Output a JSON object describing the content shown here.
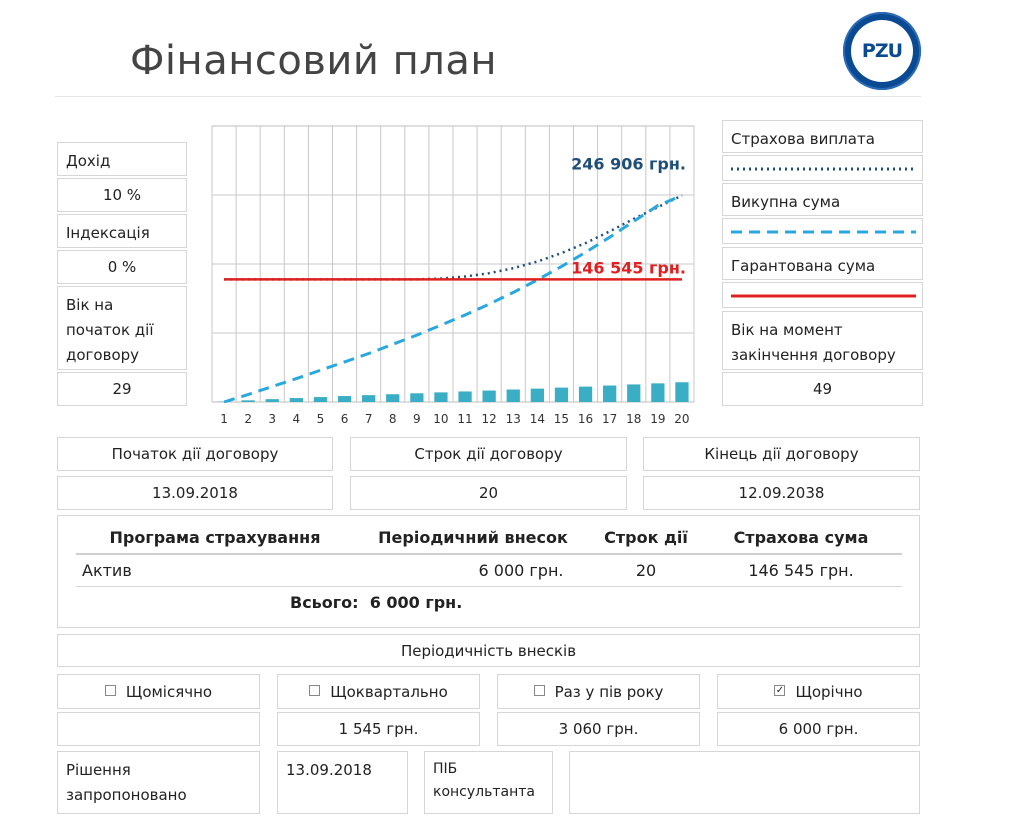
{
  "header": {
    "title": "Фінансовий план",
    "logo_text": "PZU"
  },
  "left": {
    "income_label": "Дохід",
    "income_value": "10 %",
    "indexation_label": "Індексація",
    "indexation_value": "0 %",
    "age_start_label": "Вік на початок дії договору",
    "age_start_value": "29"
  },
  "legend": {
    "payout_label": "Страхова виплата",
    "surrender_label": "Викупна сума",
    "guaranteed_label": "Гарантована сума",
    "age_end_label": "Вік на момент закінчення договору",
    "age_end_value": "49",
    "colors": {
      "payout": "#1f4e79",
      "surrender": "#29a8e0",
      "guaranteed": "#e02020"
    }
  },
  "chart_data": {
    "type": "bar",
    "categories": [
      "1",
      "2",
      "3",
      "4",
      "5",
      "6",
      "7",
      "8",
      "9",
      "10",
      "11",
      "12",
      "13",
      "14",
      "15",
      "16",
      "17",
      "18",
      "19",
      "20"
    ],
    "series": [
      {
        "values": [
          500,
          2000,
          3400,
          4700,
          5900,
          7100,
          8200,
          9300,
          10400,
          11500,
          12600,
          13700,
          14900,
          16000,
          17200,
          18400,
          19700,
          21000,
          22300,
          23600
        ]
      }
    ],
    "lines": [
      {
        "name": "Страхова виплата",
        "style": "dotted",
        "values": [
          146545,
          146545,
          146545,
          146545,
          146545,
          146545,
          146545,
          146545,
          146545,
          147500,
          150000,
          154000,
          160000,
          168000,
          178000,
          190000,
          204000,
          219000,
          233000,
          246906
        ]
      },
      {
        "name": "Викупна сума",
        "style": "dashed",
        "values": [
          0,
          9000,
          18500,
          28000,
          38000,
          48000,
          58000,
          69000,
          80000,
          92000,
          104000,
          117000,
          131000,
          146000,
          162000,
          179000,
          197000,
          216000,
          235000,
          246906
        ]
      },
      {
        "name": "Гарантована сума",
        "style": "solid",
        "values": [
          146545,
          146545,
          146545,
          146545,
          146545,
          146545,
          146545,
          146545,
          146545,
          146545,
          146545,
          146545,
          146545,
          146545,
          146545,
          146545,
          146545,
          146545,
          146545,
          146545
        ]
      }
    ],
    "annotations": [
      {
        "text": "246 906 грн.",
        "color": "#1f4e79"
      },
      {
        "text": "146 545 грн.",
        "color": "#e02020"
      }
    ],
    "ylim": [
      0,
      330000
    ],
    "grid": true
  },
  "contract": {
    "start_label": "Початок дії договору",
    "term_label": "Строк дії договору",
    "end_label": "Кінець дії договору",
    "start_value": "13.09.2018",
    "term_value": "20",
    "end_value": "12.09.2038"
  },
  "program": {
    "columns": [
      "Програма страхування",
      "Періодичний внесок",
      "Строк дії",
      "Страхова сума"
    ],
    "rows": [
      [
        "Актив",
        "6 000 грн.",
        "20",
        "146 545 грн."
      ]
    ],
    "total_label": "Всього:",
    "total_value": "6 000 грн."
  },
  "periodicity": {
    "title": "Періодичність внесків",
    "options": [
      {
        "label": "Щомісячно",
        "checked": false,
        "value": ""
      },
      {
        "label": "Щоквартально",
        "checked": false,
        "value": "1 545 грн."
      },
      {
        "label": "Раз у пів року",
        "checked": false,
        "value": "3 060 грн."
      },
      {
        "label": "Щорічно",
        "checked": true,
        "value": "6 000 грн."
      }
    ]
  },
  "footer": {
    "decision_label": "Рішення запропоновано",
    "decision_date": "13.09.2018",
    "consultant_label": "ПІБ консультанта",
    "consultant_value": ""
  }
}
